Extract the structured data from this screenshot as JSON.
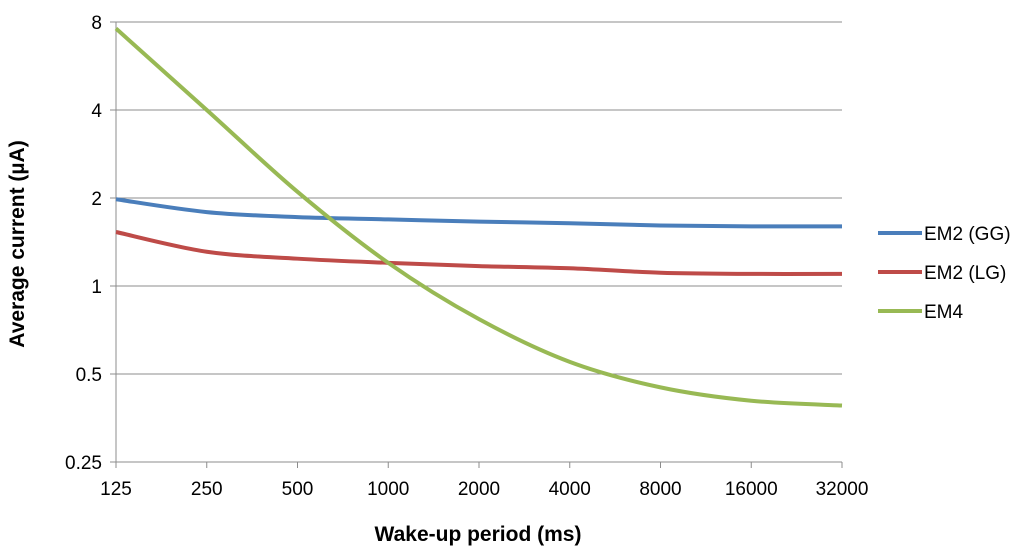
{
  "chart_data": {
    "type": "line",
    "title": "",
    "xlabel": "Wake-up period (ms)",
    "ylabel": "Average current (µA)",
    "x_scale": "log2",
    "y_scale": "log2",
    "x": [
      125,
      250,
      500,
      1000,
      2000,
      4000,
      8000,
      16000,
      32000
    ],
    "x_tick_labels": [
      "125",
      "250",
      "500",
      "1000",
      "2000",
      "4000",
      "8000",
      "16000",
      "32000"
    ],
    "y_ticks": [
      0.25,
      0.5,
      1,
      2,
      4,
      8
    ],
    "y_tick_labels": [
      "0.25",
      "0.5",
      "1",
      "2",
      "4",
      "8"
    ],
    "xlim": [
      125,
      32000
    ],
    "ylim": [
      0.25,
      8
    ],
    "grid": "horizontal",
    "legend_position": "right",
    "series": [
      {
        "name": "EM2 (GG)",
        "color": "#4a7ebb",
        "values": [
          1.98,
          1.79,
          1.72,
          1.69,
          1.66,
          1.64,
          1.61,
          1.6,
          1.6
        ]
      },
      {
        "name": "EM2 (LG)",
        "color": "#be4b48",
        "values": [
          1.53,
          1.31,
          1.24,
          1.2,
          1.17,
          1.15,
          1.11,
          1.1,
          1.1
        ]
      },
      {
        "name": "EM4",
        "color": "#98b954",
        "values": [
          7.6,
          4.0,
          2.1,
          1.2,
          0.77,
          0.55,
          0.45,
          0.405,
          0.39
        ]
      }
    ]
  }
}
